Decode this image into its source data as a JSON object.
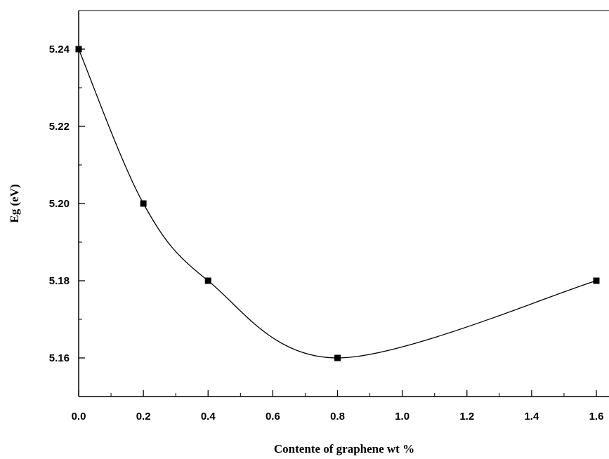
{
  "chart_data": {
    "type": "scatter",
    "xlabel": "Contente of graphene wt %",
    "ylabel": "Eg (eV)",
    "xlim": [
      0.0,
      1.6
    ],
    "ylim": [
      5.15,
      5.25
    ],
    "x_ticks": [
      "0.0",
      "0.2",
      "0.4",
      "0.6",
      "0.8",
      "1.0",
      "1.2",
      "1.4",
      "1.6"
    ],
    "y_ticks": [
      "5.16",
      "5.18",
      "5.20",
      "5.22",
      "5.24"
    ],
    "series": [
      {
        "points": [
          {
            "x": 0.0,
            "y": 5.24
          },
          {
            "x": 0.2,
            "y": 5.2
          },
          {
            "x": 0.4,
            "y": 5.18
          },
          {
            "x": 0.8,
            "y": 5.16
          },
          {
            "x": 1.6,
            "y": 5.18
          }
        ],
        "fit_line": true,
        "marker": "square",
        "color": "#000000"
      }
    ],
    "grid": false
  }
}
